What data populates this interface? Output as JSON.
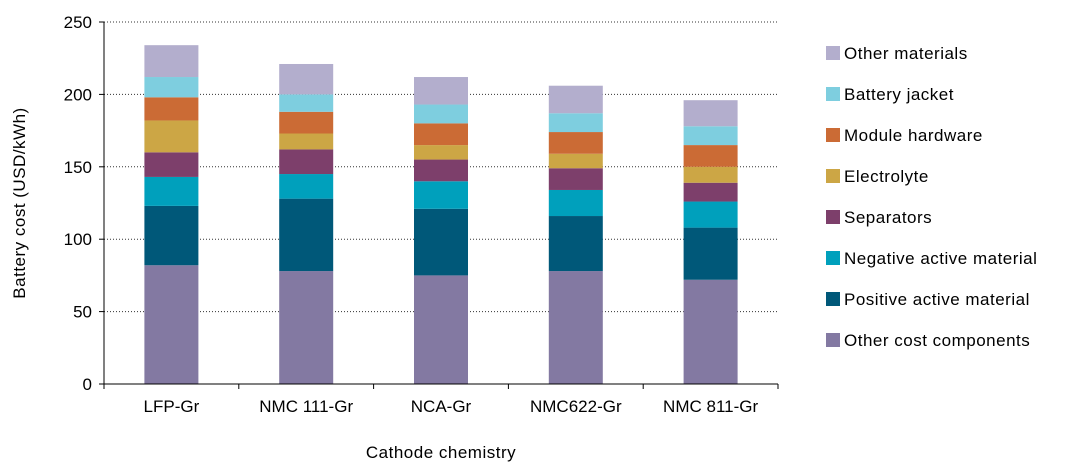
{
  "chart_data": {
    "type": "bar",
    "stacked": true,
    "title": "",
    "xlabel": "Cathode chemistry",
    "ylabel": "Battery cost (USD/kWh)",
    "ylim": [
      0,
      250
    ],
    "yticks": [
      0,
      50,
      100,
      150,
      200,
      250
    ],
    "grid": true,
    "grid_style": "dotted horizontal",
    "legend_position": "right",
    "categories": [
      "LFP-Gr",
      "NMC 111-Gr",
      "NCA-Gr",
      "NMC622-Gr",
      "NMC 811-Gr"
    ],
    "series": [
      {
        "name": "Other cost components",
        "color": "#8379A2",
        "values": [
          82,
          78,
          75,
          78,
          72
        ]
      },
      {
        "name": "Positive active material",
        "color": "#005879",
        "values": [
          41,
          50,
          46,
          38,
          36
        ]
      },
      {
        "name": "Negative active material",
        "color": "#00A0BC",
        "values": [
          20,
          17,
          19,
          18,
          18
        ]
      },
      {
        "name": "Separators",
        "color": "#7D3F6B",
        "values": [
          17,
          17,
          15,
          15,
          13
        ]
      },
      {
        "name": "Electrolyte",
        "color": "#CCA645",
        "values": [
          22,
          11,
          10,
          10,
          11
        ]
      },
      {
        "name": "Module hardware",
        "color": "#CB6B35",
        "values": [
          16,
          15,
          15,
          15,
          15
        ]
      },
      {
        "name": "Battery jacket",
        "color": "#7ECEDF",
        "values": [
          14,
          12,
          13,
          13,
          13
        ]
      },
      {
        "name": "Other materials",
        "color": "#B3AECD",
        "values": [
          22,
          21,
          19,
          19,
          18
        ]
      }
    ]
  }
}
